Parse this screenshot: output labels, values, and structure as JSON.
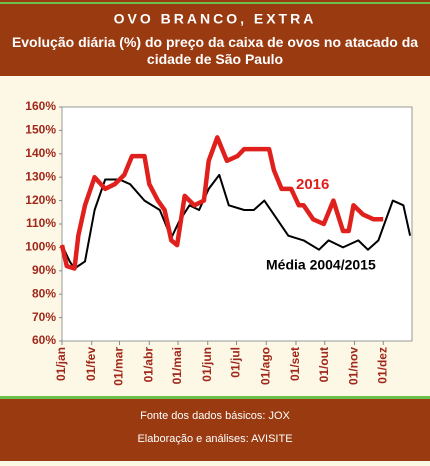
{
  "chart_data": {
    "type": "line",
    "title": "OVO BRANCO, EXTRA",
    "subtitle": "Evolução diária (%) do preço da caixa de ovos no atacado da cidade de São Paulo",
    "footer": [
      "Fonte dos dados básicos: JOX",
      "Elaboração e análises: AVISITE"
    ],
    "xlim": [
      1,
      366
    ],
    "xticks": [
      {
        "value": 1,
        "label": "01/jan"
      },
      {
        "value": 32,
        "label": "01/fev"
      },
      {
        "value": 61,
        "label": "01/mar"
      },
      {
        "value": 92,
        "label": "01/abr"
      },
      {
        "value": 122,
        "label": "01/mai"
      },
      {
        "value": 153,
        "label": "01/jun"
      },
      {
        "value": 183,
        "label": "01/jul"
      },
      {
        "value": 214,
        "label": "01/ago"
      },
      {
        "value": 245,
        "label": "01/set"
      },
      {
        "value": 275,
        "label": "01/out"
      },
      {
        "value": 306,
        "label": "01/nov"
      },
      {
        "value": 336,
        "label": "01/dez"
      }
    ],
    "ylim": [
      60,
      160
    ],
    "yticks": [
      {
        "value": 60,
        "label": "60%"
      },
      {
        "value": 70,
        "label": "70%"
      },
      {
        "value": 80,
        "label": "80%"
      },
      {
        "value": 90,
        "label": "90%"
      },
      {
        "value": 100,
        "label": "100%"
      },
      {
        "value": 110,
        "label": "110%"
      },
      {
        "value": 120,
        "label": "120%"
      },
      {
        "value": 130,
        "label": "130%"
      },
      {
        "value": 140,
        "label": "140%"
      },
      {
        "value": 150,
        "label": "150%"
      },
      {
        "value": 160,
        "label": "160%"
      }
    ],
    "grid": false,
    "series": [
      {
        "name": "Média 2004/2015",
        "color": "#000000",
        "x": [
          1,
          9,
          14,
          25,
          35,
          46,
          61,
          72,
          87,
          103,
          115,
          123,
          134,
          144,
          154,
          165,
          175,
          191,
          201,
          212,
          222,
          237,
          253,
          269,
          279,
          294,
          310,
          320,
          331,
          346,
          357,
          364
        ],
        "values": [
          101,
          94,
          91,
          94,
          116,
          129,
          129,
          127,
          120,
          116,
          104,
          111,
          118,
          116,
          125,
          131,
          118,
          116,
          116,
          120,
          114,
          105,
          103,
          99,
          103,
          100,
          103,
          99,
          103,
          120,
          118,
          105
        ]
      },
      {
        "name": "2016",
        "color": "#e0201c",
        "x": [
          1,
          6,
          14,
          18,
          25,
          35,
          46,
          56,
          66,
          74,
          87,
          92,
          101,
          108,
          115,
          121,
          129,
          139,
          149,
          154,
          163,
          173,
          184,
          191,
          206,
          217,
          222,
          230,
          240,
          248,
          253,
          263,
          274,
          284,
          294,
          300,
          305,
          315,
          326,
          336
        ],
        "values": [
          101,
          92,
          91,
          105,
          118,
          130,
          125,
          127,
          131,
          139,
          139,
          127,
          120,
          116,
          103,
          101,
          122,
          118,
          120,
          137,
          147,
          137,
          139,
          142,
          142,
          142,
          133,
          125,
          125,
          118,
          118,
          112,
          110,
          120,
          107,
          107,
          118,
          114,
          112,
          112
        ]
      }
    ]
  }
}
